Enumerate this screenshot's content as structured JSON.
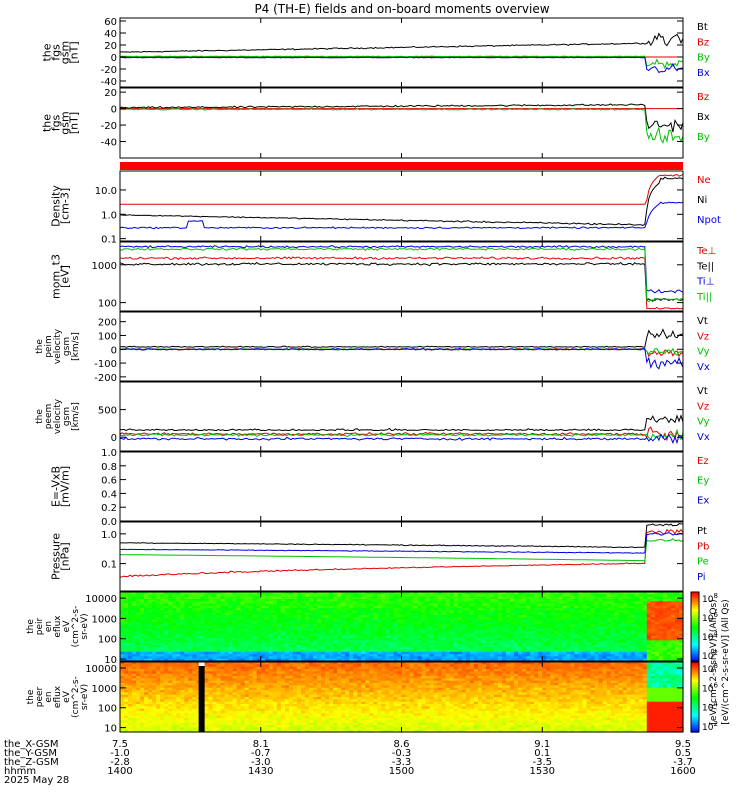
{
  "title": "P4 (TH-E) fields and on-board moments overview",
  "colors": {
    "black": "#000000",
    "red": "#e00000",
    "green": "#00c000",
    "blue": "#0000e0"
  },
  "chart_data": {
    "type": "line",
    "time_axis": {
      "range": [
        1400,
        1600
      ],
      "ticks_hhmm": [
        "1400",
        "1430",
        "1500",
        "1530",
        "1600"
      ],
      "date": "2025 May 28",
      "ephemeris": [
        {
          "label": "the_X-GSM",
          "values": [
            "7.5",
            "8.1",
            "8.6",
            "9.1",
            "9.5"
          ]
        },
        {
          "label": "the_Y-GSM",
          "values": [
            "-1.0",
            "-0.7",
            "-0.3",
            "0.1",
            "0.5"
          ]
        },
        {
          "label": "the_Z-GSM",
          "values": [
            "-2.8",
            "-3.0",
            "-3.3",
            "-3.5",
            "-3.7"
          ]
        },
        {
          "label": "hhmm",
          "values": [
            "1400",
            "1430",
            "1500",
            "1530",
            "1600"
          ]
        }
      ]
    },
    "panels": [
      {
        "id": "fgs-gsm",
        "ylabel": [
          "the",
          "fgs",
          "gsm",
          "[nT]"
        ],
        "ylim": [
          -50,
          65
        ],
        "yticks": [
          "60",
          "40",
          "20",
          "0",
          "-20",
          "-40"
        ],
        "legend": [
          {
            "name": "Bt",
            "color": "black"
          },
          {
            "name": "Bz",
            "color": "red"
          },
          {
            "name": "By",
            "color": "green"
          },
          {
            "name": "Bx",
            "color": "blue"
          }
        ]
      },
      {
        "id": "fgs-dsl",
        "ylabel": [
          "the",
          "fgs",
          "gsm",
          "[nT]"
        ],
        "ylim": [
          -60,
          25
        ],
        "yticks": [
          "20",
          "0",
          "-20",
          "-40"
        ],
        "legend": [
          {
            "name": "Bz",
            "color": "red"
          },
          {
            "name": "Bx",
            "color": "black"
          },
          {
            "name": "By",
            "color": "green"
          }
        ]
      },
      {
        "id": "density",
        "ylabel": [
          "Density",
          "[cm-3]"
        ],
        "log": true,
        "ylim": [
          0.08,
          60
        ],
        "yticks": [
          "10.0",
          "1.0",
          "0.1"
        ],
        "legend": [
          {
            "name": "Ne",
            "color": "red"
          },
          {
            "name": "Ni",
            "color": "black"
          },
          {
            "name": "Npot",
            "color": "blue"
          }
        ]
      },
      {
        "id": "temperature",
        "ylabel": [
          "mom_t3",
          "[eV]"
        ],
        "log": true,
        "ylim": [
          60,
          4000
        ],
        "yticks": [
          "1000",
          "100"
        ],
        "legend": [
          {
            "name": "Te⊥",
            "color": "red"
          },
          {
            "name": "Te||",
            "color": "black"
          },
          {
            "name": "Ti⊥",
            "color": "blue"
          },
          {
            "name": "Ti||",
            "color": "green"
          }
        ]
      },
      {
        "id": "peim-velocity",
        "ylabel": [
          "the",
          "peim",
          "velocity",
          "gsm",
          "[km/s]"
        ],
        "ylim": [
          -230,
          270
        ],
        "yticks": [
          "200",
          "100",
          "0",
          "-100",
          "-200"
        ],
        "legend": [
          {
            "name": "Vt",
            "color": "black"
          },
          {
            "name": "Vz",
            "color": "red"
          },
          {
            "name": "Vy",
            "color": "green"
          },
          {
            "name": "Vx",
            "color": "blue"
          }
        ]
      },
      {
        "id": "peem-velocity",
        "ylabel": [
          "the",
          "peem",
          "velocity",
          "gsm",
          "[km/s]"
        ],
        "ylim": [
          -250,
          1000
        ],
        "yticks": [
          "500",
          "0"
        ],
        "legend": [
          {
            "name": "Vt",
            "color": "black"
          },
          {
            "name": "Vz",
            "color": "red"
          },
          {
            "name": "Vy",
            "color": "green"
          },
          {
            "name": "Vx",
            "color": "blue"
          }
        ]
      },
      {
        "id": "efield",
        "ylabel": [
          "E=-VxB",
          "[mV/m]"
        ],
        "ylim": [
          0.0,
          1.0
        ],
        "yticks": [
          "1.0",
          "0.8",
          "0.6",
          "0.4",
          "0.2",
          "0.0"
        ],
        "legend": [
          {
            "name": "Ez",
            "color": "red"
          },
          {
            "name": "Ey",
            "color": "green"
          },
          {
            "name": "Ex",
            "color": "blue"
          }
        ]
      },
      {
        "id": "pressure",
        "ylabel": [
          "Pressure",
          "[nPa]"
        ],
        "log": true,
        "ylim": [
          0.012,
          2.5
        ],
        "yticks": [
          "1.0",
          "0.1"
        ],
        "legend": [
          {
            "name": "Pt",
            "color": "black"
          },
          {
            "name": "Pb",
            "color": "red"
          },
          {
            "name": "Pe",
            "color": "green"
          },
          {
            "name": "Pi",
            "color": "blue"
          }
        ]
      },
      {
        "id": "peir-eflux",
        "type": "heatmap",
        "ylabel": [
          "the",
          "peir",
          "en",
          "eflux",
          "eV",
          "(cm^2-s-",
          "sr-eV)"
        ],
        "log": true,
        "ylim": [
          8,
          20000
        ],
        "yticks": [
          "10000",
          "1000",
          "100",
          "10"
        ]
      },
      {
        "id": "peer-eflux",
        "type": "heatmap",
        "ylabel": [
          "the",
          "peer",
          "en",
          "eflux",
          "eV",
          "(cm^2-s-",
          "sr-eV)"
        ],
        "log": true,
        "ylim": [
          6,
          20000
        ],
        "yticks": [
          "10000",
          "1000",
          "100",
          "10"
        ]
      }
    ],
    "colorbars": [
      {
        "ticks": [
          {
            "base": "10",
            "exp": "8"
          },
          {
            "base": "10",
            "exp": "6"
          },
          {
            "base": "10",
            "exp": "4"
          },
          {
            "base": "10",
            "exp": "2"
          }
        ]
      },
      {
        "ticks": [
          {
            "base": "10",
            "exp": "8"
          },
          {
            "base": "10",
            "exp": "6"
          },
          {
            "base": "10",
            "exp": "4"
          },
          {
            "base": "10",
            "exp": "2"
          }
        ]
      }
    ],
    "colorbar_label": "[eV/(cm^2-s-sr-eV)] (All Qs)",
    "colorbar_label_overlap": "[eV/(cm^2-s-sr-eV)] (All Qs)"
  }
}
